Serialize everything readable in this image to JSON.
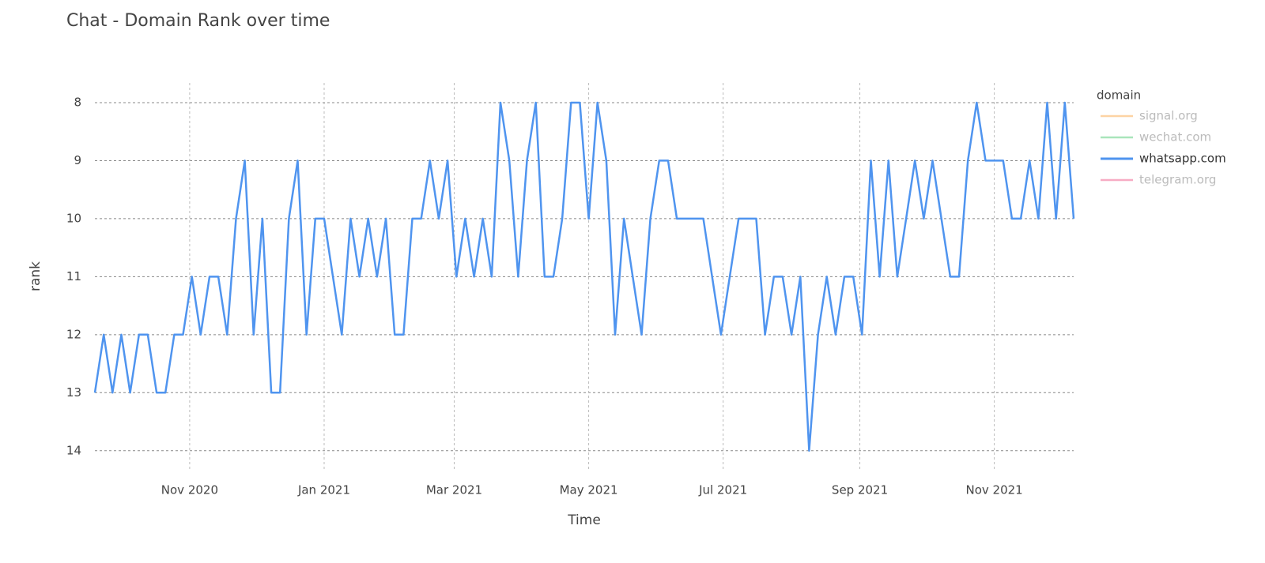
{
  "chart_data": {
    "type": "line",
    "title": "Chat - Domain Rank over time",
    "x_label": "Time",
    "y_label": "rank",
    "legend_title": "domain",
    "legend_position": "right",
    "y_reversed": true,
    "grid": true,
    "xlim": [
      "2020-09-19",
      "2021-12-07"
    ],
    "xticks": [
      {
        "value": "2020-11-01",
        "label": "Nov 2020"
      },
      {
        "value": "2021-01-01",
        "label": "Jan 2021"
      },
      {
        "value": "2021-03-01",
        "label": "Mar 2021"
      },
      {
        "value": "2021-05-01",
        "label": "May 2021"
      },
      {
        "value": "2021-07-01",
        "label": "Jul 2021"
      },
      {
        "value": "2021-09-01",
        "label": "Sep 2021"
      },
      {
        "value": "2021-11-01",
        "label": "Nov 2021"
      }
    ],
    "ylim": [
      7.66,
      14.33
    ],
    "yticks": [
      8,
      9,
      10,
      11,
      12,
      13,
      14
    ],
    "x": [
      "2020-09-19",
      "2020-09-23",
      "2020-09-27",
      "2020-10-01",
      "2020-10-05",
      "2020-10-09",
      "2020-10-13",
      "2020-10-17",
      "2020-10-21",
      "2020-10-25",
      "2020-10-29",
      "2020-11-02",
      "2020-11-06",
      "2020-11-10",
      "2020-11-14",
      "2020-11-18",
      "2020-11-22",
      "2020-11-26",
      "2020-11-30",
      "2020-12-04",
      "2020-12-08",
      "2020-12-12",
      "2020-12-16",
      "2020-12-20",
      "2020-12-24",
      "2020-12-28",
      "2021-01-01",
      "2021-01-05",
      "2021-01-09",
      "2021-01-13",
      "2021-01-17",
      "2021-01-21",
      "2021-01-25",
      "2021-01-29",
      "2021-02-02",
      "2021-02-06",
      "2021-02-10",
      "2021-02-14",
      "2021-02-18",
      "2021-02-22",
      "2021-02-26",
      "2021-03-02",
      "2021-03-06",
      "2021-03-10",
      "2021-03-14",
      "2021-03-18",
      "2021-03-22",
      "2021-03-26",
      "2021-03-30",
      "2021-04-03",
      "2021-04-07",
      "2021-04-11",
      "2021-04-15",
      "2021-04-19",
      "2021-04-23",
      "2021-04-27",
      "2021-05-01",
      "2021-05-05",
      "2021-05-09",
      "2021-05-13",
      "2021-05-17",
      "2021-05-21",
      "2021-05-25",
      "2021-05-29",
      "2021-06-02",
      "2021-06-06",
      "2021-06-10",
      "2021-06-14",
      "2021-06-18",
      "2021-06-22",
      "2021-06-26",
      "2021-06-30",
      "2021-07-04",
      "2021-07-08",
      "2021-07-12",
      "2021-07-16",
      "2021-07-20",
      "2021-07-24",
      "2021-07-28",
      "2021-08-01",
      "2021-08-05",
      "2021-08-09",
      "2021-08-13",
      "2021-08-17",
      "2021-08-21",
      "2021-08-25",
      "2021-08-29",
      "2021-09-02",
      "2021-09-06",
      "2021-09-10",
      "2021-09-14",
      "2021-09-18",
      "2021-09-22",
      "2021-09-26",
      "2021-09-30",
      "2021-10-04",
      "2021-10-08",
      "2021-10-12",
      "2021-10-16",
      "2021-10-20",
      "2021-10-24",
      "2021-10-28",
      "2021-11-01",
      "2021-11-05",
      "2021-11-09",
      "2021-11-13",
      "2021-11-17",
      "2021-11-21",
      "2021-11-25",
      "2021-11-29",
      "2021-12-03",
      "2021-12-07"
    ],
    "series": [
      {
        "name": "signal.org",
        "color": "#fdd3a4",
        "visible": "legendonly"
      },
      {
        "name": "wechat.com",
        "color": "#a9e5bb",
        "visible": "legendonly"
      },
      {
        "name": "whatsapp.com",
        "color": "#4f94ef",
        "values": [
          13,
          12,
          13,
          12,
          13,
          12,
          12,
          13,
          13,
          12,
          12,
          11,
          12,
          11,
          11,
          12,
          10,
          9,
          12,
          10,
          13,
          13,
          10,
          9,
          12,
          10,
          10,
          11,
          12,
          10,
          11,
          10,
          11,
          10,
          12,
          12,
          10,
          10,
          9,
          10,
          9,
          11,
          10,
          11,
          10,
          11,
          8,
          9,
          11,
          9,
          8,
          11,
          11,
          10,
          8,
          8,
          10,
          8,
          9,
          12,
          10,
          11,
          12,
          10,
          9,
          9,
          10,
          10,
          10,
          10,
          11,
          12,
          11,
          10,
          10,
          10,
          12,
          11,
          11,
          12,
          11,
          14,
          12,
          11,
          12,
          11,
          11,
          12,
          9,
          11,
          9,
          11,
          10,
          9,
          10,
          9,
          10,
          11,
          11,
          9,
          8,
          9,
          9,
          9,
          10,
          10,
          9,
          10,
          8,
          10,
          8,
          10
        ]
      },
      {
        "name": "telegram.org",
        "color": "#f7abc4",
        "visible": "legendonly"
      }
    ]
  }
}
